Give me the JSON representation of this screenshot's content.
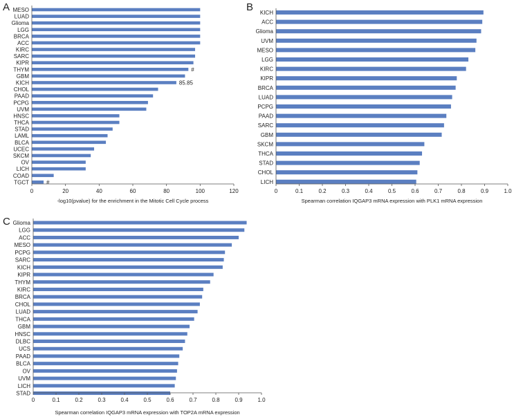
{
  "chart_data": [
    {
      "panel_label": "A",
      "type": "bar",
      "orientation": "horizontal",
      "categories": [
        "MESO",
        "LUAD",
        "Glioma",
        "LGG",
        "BRCA",
        "ACC",
        "KIRC",
        "SARC",
        "KIPR",
        "THYM",
        "GBM",
        "KICH",
        "CHOL",
        "PAAD",
        "PCPG",
        "UVM",
        "HNSC",
        "THCA",
        "STAD",
        "LAML",
        "BLCA",
        "UCEC",
        "SKCM",
        "OV",
        "LICH",
        "COAD",
        "TGCT"
      ],
      "values": [
        100,
        100,
        100,
        100,
        100,
        100,
        97,
        97,
        96,
        93,
        91,
        85.85,
        75,
        72,
        69,
        68,
        52,
        52,
        48,
        45,
        44,
        37,
        35,
        32,
        32,
        13,
        7
      ],
      "annotations": [
        {
          "category": "THYM",
          "text": "#"
        },
        {
          "category": "KICH",
          "text": "85.85"
        },
        {
          "category": "TGCT",
          "text": "#"
        }
      ],
      "xlabel": "-log10(pvalue) for the enrichment in the Mitotic Cell Cycle process",
      "xlim": [
        0,
        120
      ],
      "xticks": [
        0,
        20,
        40,
        60,
        80,
        100,
        120
      ],
      "xtick_labels": [
        "0",
        "20",
        "40",
        "60",
        "80",
        "100",
        "120"
      ],
      "bar_color": "#5b7fc1"
    },
    {
      "panel_label": "B",
      "type": "bar",
      "orientation": "horizontal",
      "categories": [
        "KICH",
        "ACC",
        "Glioma",
        "UVM",
        "MESO",
        "LGG",
        "KIRC",
        "KIPR",
        "BRCA",
        "LUAD",
        "PCPG",
        "PAAD",
        "SARC",
        "GBM",
        "SKCM",
        "THCA",
        "STAD",
        "CHOL",
        "LICH"
      ],
      "values": [
        0.895,
        0.89,
        0.885,
        0.865,
        0.86,
        0.83,
        0.82,
        0.78,
        0.775,
        0.76,
        0.755,
        0.735,
        0.725,
        0.715,
        0.64,
        0.63,
        0.62,
        0.61,
        0.605
      ],
      "xlabel": "Spearman correlation IQGAP3 mRNA expression with PLK1 mRNA expression",
      "xlim": [
        0,
        1.0
      ],
      "xticks": [
        0,
        0.1,
        0.2,
        0.3,
        0.4,
        0.5,
        0.6,
        0.7,
        0.8,
        0.9,
        1.0
      ],
      "xtick_labels": [
        "0",
        "0.1",
        "0.2",
        "0.3",
        "0.4",
        "0.5",
        "0.6",
        "0.7",
        "0.8",
        "0.9",
        "1.0"
      ],
      "bar_color": "#5b7fc1"
    },
    {
      "panel_label": "C",
      "type": "bar",
      "orientation": "horizontal",
      "categories": [
        "Glioma",
        "LGG",
        "ACC",
        "MESO",
        "PCPG",
        "SARC",
        "KICH",
        "KIPR",
        "THYM",
        "KIRC",
        "BRCA",
        "CHOL",
        "LUAD",
        "THCA",
        "GBM",
        "HNSC",
        "DLBC",
        "UCS",
        "PAAD",
        "BLCA",
        "OV",
        "UVM",
        "LICH",
        "STAD"
      ],
      "values": [
        0.935,
        0.925,
        0.9,
        0.87,
        0.84,
        0.835,
        0.83,
        0.79,
        0.775,
        0.745,
        0.74,
        0.73,
        0.72,
        0.705,
        0.685,
        0.675,
        0.665,
        0.655,
        0.64,
        0.635,
        0.63,
        0.625,
        0.62,
        0.6
      ],
      "xlabel": "Spearman correlation IQGAP3 mRNA expression with TOP2A mRNA expression",
      "xlim": [
        0,
        1.0
      ],
      "xticks": [
        0,
        0.1,
        0.2,
        0.3,
        0.4,
        0.5,
        0.6,
        0.7,
        0.8,
        0.9,
        1.0
      ],
      "xtick_labels": [
        "0",
        "0.1",
        "0.2",
        "0.3",
        "0.4",
        "0.5",
        "0.6",
        "0.7",
        "0.8",
        "0.9",
        "1.0"
      ],
      "bar_color": "#5b7fc1"
    }
  ]
}
